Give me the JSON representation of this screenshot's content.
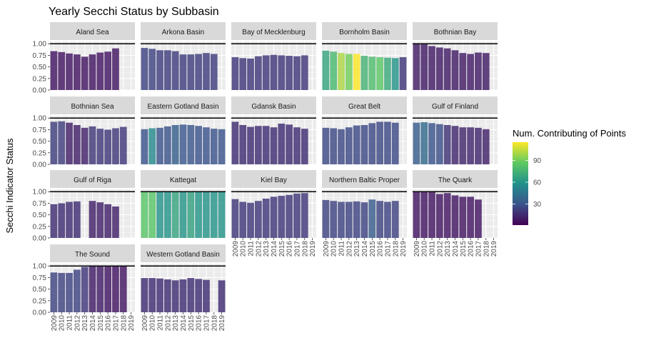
{
  "chart_data": {
    "type": "bar",
    "title": "Yearly Secchi Status by Subbasin",
    "ylabel": "Secchi Indicator Status",
    "xlabel": "",
    "ylim": [
      0,
      1
    ],
    "yticks": [
      "0.00",
      "0.25",
      "0.50",
      "0.75",
      "1.00"
    ],
    "categories": [
      "2009",
      "2010",
      "2011",
      "2012",
      "2013",
      "2014",
      "2015",
      "2016",
      "2017",
      "2018",
      "2019"
    ],
    "reference_line": 1.0,
    "grid": true,
    "legend": {
      "title": "Num. Contributing of Points",
      "position": "right",
      "ticks": [
        30,
        60,
        90
      ],
      "range": [
        1,
        115
      ],
      "colors": [
        "#440154",
        "#3b528b",
        "#21908c",
        "#5dc963",
        "#fde725"
      ]
    },
    "facets": [
      {
        "name": "Aland Sea",
        "values": [
          0.84,
          0.82,
          0.79,
          0.77,
          0.72,
          0.77,
          0.81,
          0.83,
          0.9,
          null,
          null
        ],
        "counts": [
          8,
          8,
          8,
          8,
          8,
          8,
          8,
          8,
          8,
          null,
          null
        ]
      },
      {
        "name": "Arkona Basin",
        "values": [
          0.91,
          0.89,
          0.86,
          0.86,
          0.84,
          0.77,
          0.77,
          0.78,
          0.8,
          0.78,
          null
        ],
        "counts": [
          24,
          24,
          22,
          22,
          22,
          22,
          22,
          22,
          22,
          22,
          null
        ]
      },
      {
        "name": "Bay of Mecklenburg",
        "values": [
          0.71,
          0.69,
          0.68,
          0.73,
          0.75,
          0.76,
          0.75,
          0.74,
          0.73,
          0.75,
          null
        ],
        "counts": [
          20,
          20,
          20,
          20,
          20,
          20,
          20,
          20,
          20,
          20,
          null
        ]
      },
      {
        "name": "Bornholm Basin",
        "values": [
          0.85,
          0.83,
          0.8,
          0.78,
          0.78,
          0.74,
          0.72,
          0.71,
          0.7,
          0.69,
          0.71
        ],
        "counts": [
          68,
          78,
          100,
          90,
          115,
          75,
          80,
          85,
          70,
          60,
          20
        ]
      },
      {
        "name": "Bothnian Bay",
        "values": [
          1.0,
          1.0,
          0.95,
          0.92,
          0.9,
          0.86,
          0.8,
          0.78,
          0.81,
          0.8,
          null
        ],
        "counts": [
          10,
          10,
          10,
          10,
          10,
          10,
          10,
          10,
          10,
          10,
          null
        ]
      },
      {
        "name": "Bothnian Sea",
        "values": [
          0.92,
          0.93,
          0.9,
          0.85,
          0.79,
          0.82,
          0.77,
          0.75,
          0.78,
          0.81,
          null
        ],
        "counts": [
          22,
          22,
          12,
          12,
          12,
          20,
          20,
          20,
          20,
          20,
          null
        ]
      },
      {
        "name": "Eastern Gotland Basin",
        "values": [
          0.76,
          0.78,
          0.79,
          0.82,
          0.85,
          0.86,
          0.85,
          0.83,
          0.8,
          0.77,
          0.76
        ],
        "counts": [
          30,
          55,
          30,
          30,
          35,
          32,
          32,
          30,
          30,
          30,
          30
        ]
      },
      {
        "name": "Gdansk Basin",
        "values": [
          0.92,
          0.85,
          0.81,
          0.83,
          0.83,
          0.8,
          0.88,
          0.86,
          0.8,
          0.77,
          null
        ],
        "counts": [
          16,
          16,
          16,
          16,
          16,
          16,
          16,
          16,
          16,
          16,
          null
        ]
      },
      {
        "name": "Great Belt",
        "values": [
          0.79,
          0.78,
          0.76,
          0.8,
          0.84,
          0.85,
          0.89,
          0.92,
          0.92,
          0.9,
          null
        ],
        "counts": [
          26,
          26,
          26,
          26,
          26,
          26,
          26,
          26,
          26,
          26,
          null
        ]
      },
      {
        "name": "Gulf of Finland",
        "values": [
          0.9,
          0.91,
          0.89,
          0.87,
          0.85,
          0.83,
          0.8,
          0.8,
          0.79,
          0.76,
          null
        ],
        "counts": [
          34,
          40,
          30,
          28,
          18,
          14,
          14,
          14,
          14,
          12,
          null
        ]
      },
      {
        "name": "Gulf of Riga",
        "values": [
          0.73,
          0.75,
          0.78,
          0.79,
          null,
          0.8,
          0.77,
          0.73,
          0.68,
          null,
          null
        ],
        "counts": [
          16,
          16,
          16,
          16,
          null,
          12,
          12,
          12,
          12,
          null,
          null
        ]
      },
      {
        "name": "Kattegat",
        "values": [
          1.0,
          1.0,
          1.0,
          1.0,
          1.0,
          1.0,
          1.0,
          1.0,
          1.0,
          1.0,
          1.0
        ],
        "counts": [
          84,
          84,
          60,
          60,
          68,
          60,
          66,
          60,
          60,
          60,
          60
        ]
      },
      {
        "name": "Kiel Bay",
        "values": [
          0.84,
          0.78,
          0.76,
          0.8,
          0.85,
          0.89,
          0.91,
          0.93,
          0.96,
          0.97,
          null
        ],
        "counts": [
          20,
          20,
          20,
          20,
          20,
          20,
          20,
          20,
          20,
          20,
          null
        ]
      },
      {
        "name": "Northern Baltic Proper",
        "values": [
          0.82,
          0.8,
          0.78,
          0.78,
          0.79,
          0.77,
          0.83,
          0.8,
          0.78,
          0.8,
          null
        ],
        "counts": [
          24,
          24,
          24,
          24,
          24,
          24,
          34,
          24,
          24,
          24,
          null
        ]
      },
      {
        "name": "The Quark",
        "values": [
          1.0,
          1.0,
          1.0,
          0.95,
          0.97,
          0.92,
          0.89,
          0.89,
          0.83,
          null,
          null
        ],
        "counts": [
          8,
          8,
          8,
          8,
          8,
          8,
          8,
          8,
          8,
          null,
          null
        ]
      },
      {
        "name": "The Sound",
        "values": [
          0.86,
          0.85,
          0.85,
          0.92,
          0.98,
          1.0,
          1.0,
          1.0,
          1.0,
          1.0,
          null
        ],
        "counts": [
          24,
          24,
          24,
          24,
          20,
          10,
          10,
          8,
          8,
          8,
          null
        ]
      },
      {
        "name": "Western Gotland Basin",
        "values": [
          0.74,
          0.74,
          0.73,
          0.71,
          0.69,
          0.71,
          0.74,
          0.72,
          0.7,
          null,
          0.69
        ],
        "counts": [
          16,
          16,
          16,
          16,
          16,
          16,
          16,
          16,
          16,
          null,
          16
        ]
      }
    ]
  }
}
